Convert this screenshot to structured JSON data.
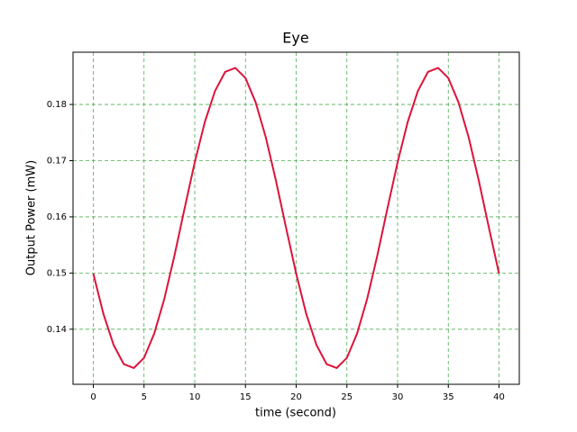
{
  "chart_data": {
    "type": "line",
    "title": "Eye",
    "x_label": "time (second)",
    "y_label": "Output Power (mW)",
    "x": [
      0,
      1,
      2,
      3,
      4,
      5,
      6,
      7,
      8,
      9,
      10,
      11,
      12,
      13,
      14,
      15,
      16,
      17,
      18,
      19,
      20,
      21,
      22,
      23,
      24,
      25,
      26,
      27,
      28,
      29,
      30,
      31,
      32,
      33,
      34,
      35,
      36,
      37,
      38,
      39,
      40
    ],
    "series": [
      {
        "name": "Eye",
        "color": "#dc143c",
        "values": [
          0.1499,
          0.1427,
          0.1372,
          0.1338,
          0.1331,
          0.1349,
          0.1392,
          0.1454,
          0.1531,
          0.1615,
          0.1697,
          0.1769,
          0.1824,
          0.1858,
          0.1865,
          0.1847,
          0.1804,
          0.1742,
          0.1665,
          0.1581,
          0.1499,
          0.1427,
          0.1372,
          0.1338,
          0.1331,
          0.1349,
          0.1392,
          0.1454,
          0.1531,
          0.1615,
          0.1697,
          0.1769,
          0.1824,
          0.1858,
          0.1865,
          0.1847,
          0.1804,
          0.1742,
          0.1665,
          0.1581,
          0.1499
        ]
      }
    ],
    "xlim": [
      -2,
      42
    ],
    "ylim": [
      0.1302,
      0.1893
    ],
    "xticks": [
      0,
      5,
      10,
      15,
      20,
      25,
      30,
      35,
      40
    ],
    "yticks": [
      0.14,
      0.15,
      0.16,
      0.17,
      0.18
    ],
    "grid": true,
    "grid_color": "#4caf50"
  }
}
